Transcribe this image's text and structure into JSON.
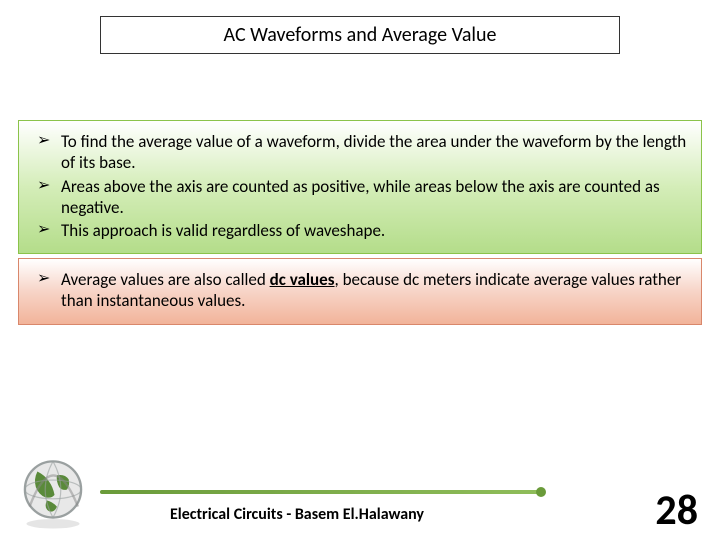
{
  "title": "AC Waveforms and Average Value",
  "greenBox": {
    "background_top": "#ffffff",
    "background_bottom": "#b4dd8a",
    "border_color": "#8bc34a",
    "bullets": [
      "To find the average value of a waveform, divide the area under the waveform by the length of its base.",
      "Areas above the axis are counted as positive, while areas below the axis are counted as negative.",
      "This approach is valid regardless of waveshape."
    ]
  },
  "redBox": {
    "background_top": "#ffffff",
    "background_bottom": "#f2b49a",
    "border_color": "#d9876b",
    "bullets_html": [
      "Average values are also called <b><u>dc values</u></b>, because dc meters indicate average values rather than instantaneous values."
    ]
  },
  "footer": {
    "course_text": "Electrical Circuits - Basem El.Halawany",
    "page_number": "28",
    "line_color": "#6a9b3a"
  },
  "globe": {
    "ring_color": "#9aa0a0",
    "land_color": "#5a8a3a",
    "ocean_color": "#e8e8e8"
  }
}
